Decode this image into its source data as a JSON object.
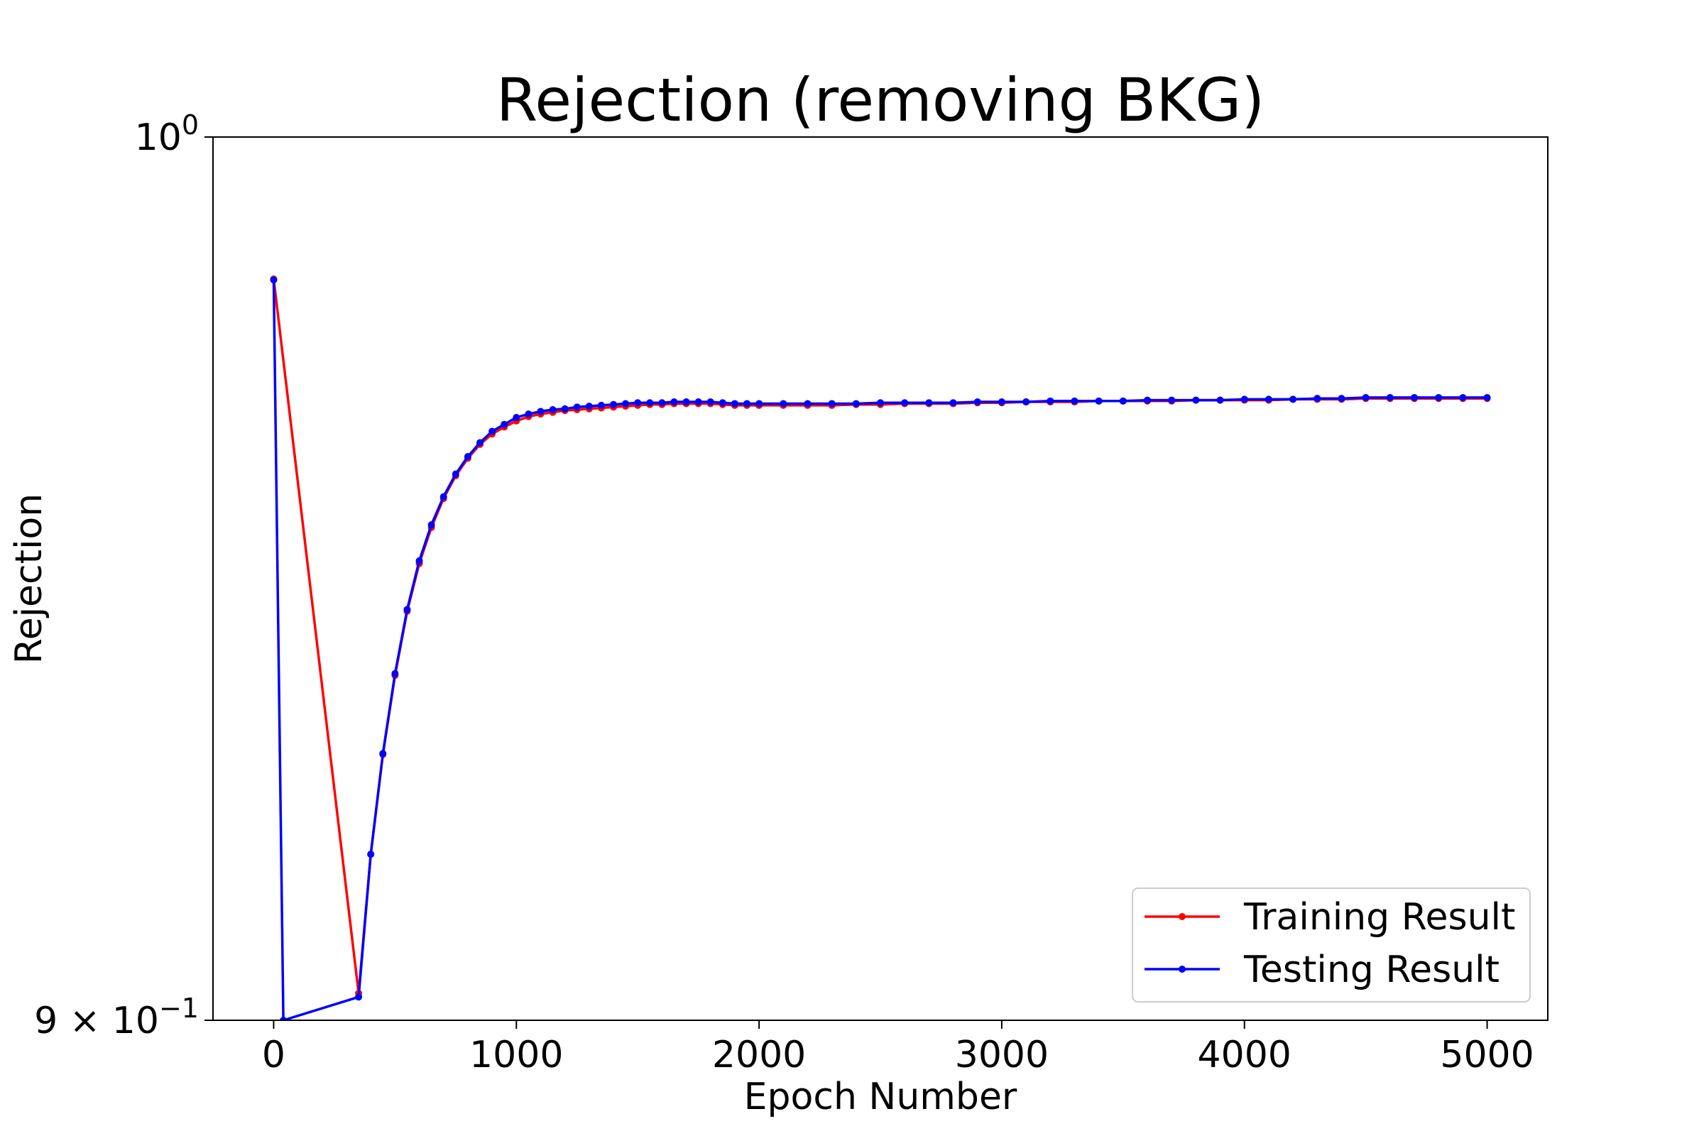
{
  "chart_data": {
    "type": "line",
    "title": "Rejection (removing BKG)",
    "xlabel": "Epoch Number",
    "ylabel": "Rejection",
    "xlim": [
      -250,
      5250
    ],
    "ylim": [
      0.9,
      1.0
    ],
    "yscale": "log",
    "x_ticks": [
      0,
      1000,
      2000,
      3000,
      4000,
      5000
    ],
    "x_tick_labels": [
      "0",
      "1000",
      "2000",
      "3000",
      "4000",
      "5000"
    ],
    "y_ticks": [
      {
        "value": 1.0,
        "label_base": "10",
        "label_exp": "0"
      },
      {
        "value": 0.9,
        "label_base": "9 × 10",
        "label_exp": "−1"
      }
    ],
    "grid": false,
    "legend_position": "lower-right",
    "series": [
      {
        "name": "Training Result",
        "color": "#ff0000",
        "x": [
          0,
          350,
          400,
          450,
          500,
          550,
          600,
          650,
          700,
          750,
          800,
          850,
          900,
          950,
          1000,
          1050,
          1100,
          1150,
          1200,
          1250,
          1300,
          1350,
          1400,
          1450,
          1500,
          1550,
          1600,
          1650,
          1700,
          1750,
          1800,
          1850,
          1900,
          1950,
          2000,
          2100,
          2200,
          2300,
          2400,
          2500,
          2600,
          2700,
          2800,
          2900,
          3000,
          3100,
          3200,
          3300,
          3400,
          3500,
          3600,
          3700,
          3800,
          3900,
          4000,
          4100,
          4200,
          4300,
          4400,
          4500,
          4600,
          4700,
          4800,
          4900,
          5000
        ],
        "y": [
          0.9832,
          0.9029,
          0.918,
          0.929,
          0.9378,
          0.945,
          0.9504,
          0.9545,
          0.9578,
          0.9604,
          0.9624,
          0.964,
          0.9652,
          0.966,
          0.9667,
          0.9672,
          0.9675,
          0.9677,
          0.9679,
          0.968,
          0.9681,
          0.9682,
          0.9683,
          0.9684,
          0.9685,
          0.9686,
          0.9686,
          0.9687,
          0.9687,
          0.9687,
          0.9687,
          0.9686,
          0.9685,
          0.9685,
          0.9685,
          0.9685,
          0.9685,
          0.9685,
          0.9686,
          0.9686,
          0.9687,
          0.9687,
          0.9687,
          0.9688,
          0.9688,
          0.9689,
          0.9689,
          0.9689,
          0.969,
          0.969,
          0.969,
          0.969,
          0.9691,
          0.9691,
          0.9691,
          0.9691,
          0.9692,
          0.9692,
          0.9692,
          0.9693,
          0.9693,
          0.9693,
          0.9693,
          0.9693,
          0.9693
        ]
      },
      {
        "name": "Testing Result",
        "color": "#0000ff",
        "x": [
          0,
          40,
          350,
          400,
          450,
          500,
          550,
          600,
          650,
          700,
          750,
          800,
          850,
          900,
          950,
          1000,
          1050,
          1100,
          1150,
          1200,
          1250,
          1300,
          1350,
          1400,
          1450,
          1500,
          1550,
          1600,
          1650,
          1700,
          1750,
          1800,
          1850,
          1900,
          1950,
          2000,
          2100,
          2200,
          2300,
          2400,
          2500,
          2600,
          2700,
          2800,
          2900,
          3000,
          3100,
          3200,
          3300,
          3400,
          3500,
          3600,
          3700,
          3800,
          3900,
          4000,
          4100,
          4200,
          4300,
          4400,
          4500,
          4600,
          4700,
          4800,
          4900,
          5000
        ],
        "y": [
          0.9831,
          0.9,
          0.9025,
          0.918,
          0.9291,
          0.938,
          0.9452,
          0.9507,
          0.9548,
          0.958,
          0.9606,
          0.9626,
          0.9642,
          0.9655,
          0.9663,
          0.9671,
          0.9675,
          0.9678,
          0.968,
          0.9681,
          0.9683,
          0.9684,
          0.9685,
          0.9686,
          0.9687,
          0.9688,
          0.9688,
          0.9688,
          0.9689,
          0.9689,
          0.9689,
          0.9689,
          0.9688,
          0.9687,
          0.9687,
          0.9687,
          0.9687,
          0.9687,
          0.9687,
          0.9687,
          0.9688,
          0.9688,
          0.9688,
          0.9688,
          0.9689,
          0.9689,
          0.9689,
          0.969,
          0.969,
          0.969,
          0.969,
          0.9691,
          0.9691,
          0.9691,
          0.9691,
          0.9692,
          0.9692,
          0.9692,
          0.9693,
          0.9693,
          0.9694,
          0.9694,
          0.9694,
          0.9694,
          0.9694,
          0.9694
        ]
      }
    ]
  }
}
